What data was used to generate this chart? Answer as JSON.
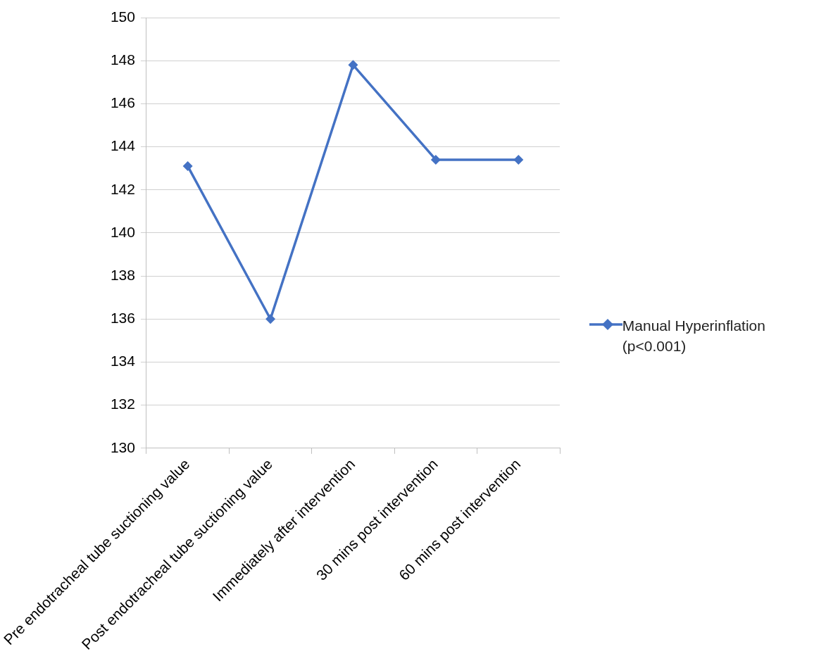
{
  "chart_data": {
    "type": "line",
    "categories": [
      "Pre endotracheal tube suctioning value",
      "Post endotracheal tube suctioning value",
      "Immediately after intervention",
      "30 mins post intervention",
      "60 mins post intervention"
    ],
    "series": [
      {
        "name": "Manual Hyperinflation (p<0.001)",
        "color": "#4472c4",
        "values": [
          143.1,
          136.0,
          147.8,
          143.4,
          143.4
        ]
      }
    ],
    "ylim": [
      130,
      150
    ],
    "yticks": [
      130,
      132,
      134,
      136,
      138,
      140,
      142,
      144,
      146,
      148,
      150
    ],
    "grid": "y",
    "legend": "right",
    "marker": "diamond",
    "line_style": "solid"
  }
}
